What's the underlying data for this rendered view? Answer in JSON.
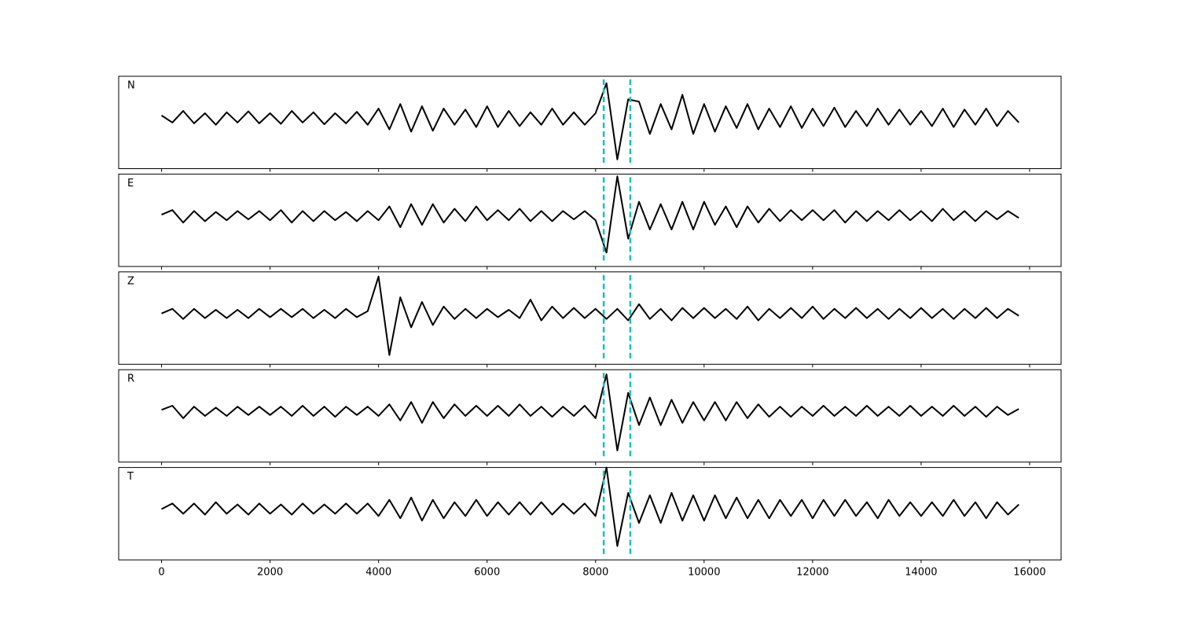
{
  "chart_data": [
    {
      "type": "line",
      "label": "N",
      "color": "#000000",
      "xlim": [
        -790,
        16580
      ],
      "ylim": [
        -1.1,
        0.9
      ],
      "xticks": [
        0,
        2000,
        4000,
        6000,
        8000,
        10000,
        12000,
        14000,
        16000
      ],
      "vlines": [
        8150,
        8640
      ],
      "vline_color": "#17bfbf",
      "x": [
        0,
        200,
        400,
        600,
        800,
        1000,
        1200,
        1400,
        1600,
        1800,
        2000,
        2200,
        2400,
        2600,
        2800,
        3000,
        3200,
        3400,
        3600,
        3800,
        4000,
        4200,
        4400,
        4600,
        4800,
        5000,
        5200,
        5400,
        5600,
        5800,
        6000,
        6200,
        6400,
        6600,
        6800,
        7000,
        7200,
        7400,
        7600,
        7800,
        8000,
        8200,
        8400,
        8600,
        8800,
        9000,
        9200,
        9400,
        9600,
        9800,
        10000,
        10200,
        10400,
        10600,
        10800,
        11000,
        11200,
        11400,
        11600,
        11800,
        12000,
        12200,
        12400,
        12600,
        12800,
        13000,
        13200,
        13400,
        13600,
        13800,
        14000,
        14200,
        14400,
        14600,
        14800,
        15000,
        15200,
        15400,
        15600,
        15800
      ],
      "values": [
        0.05,
        -0.1,
        0.15,
        -0.12,
        0.1,
        -0.15,
        0.12,
        -0.1,
        0.14,
        -0.12,
        0.1,
        -0.13,
        0.15,
        -0.1,
        0.12,
        -0.14,
        0.1,
        -0.12,
        0.13,
        -0.15,
        0.2,
        -0.25,
        0.3,
        -0.3,
        0.25,
        -0.28,
        0.2,
        -0.15,
        0.18,
        -0.2,
        0.25,
        -0.2,
        0.15,
        -0.18,
        0.12,
        -0.15,
        0.2,
        -0.15,
        0.12,
        -0.15,
        0.1,
        0.75,
        -0.9,
        0.4,
        0.35,
        -0.35,
        0.3,
        -0.25,
        0.5,
        -0.35,
        0.3,
        -0.3,
        0.25,
        -0.22,
        0.3,
        -0.25,
        0.2,
        -0.2,
        0.25,
        -0.22,
        0.2,
        -0.18,
        0.22,
        -0.2,
        0.15,
        -0.18,
        0.2,
        -0.15,
        0.18,
        -0.15,
        0.15,
        -0.18,
        0.2,
        -0.2,
        0.18,
        -0.15,
        0.2,
        -0.18,
        0.15,
        -0.1
      ]
    },
    {
      "type": "line",
      "label": "E",
      "color": "#000000",
      "xlim": [
        -790,
        16580
      ],
      "ylim": [
        -1.1,
        0.9
      ],
      "xticks": [
        0,
        2000,
        4000,
        6000,
        8000,
        10000,
        12000,
        14000,
        16000
      ],
      "vlines": [
        8150,
        8640
      ],
      "vline_color": "#17bfbf",
      "x": [
        0,
        200,
        400,
        600,
        800,
        1000,
        1200,
        1400,
        1600,
        1800,
        2000,
        2200,
        2400,
        2600,
        2800,
        3000,
        3200,
        3400,
        3600,
        3800,
        4000,
        4200,
        4400,
        4600,
        4800,
        5000,
        5200,
        5400,
        5600,
        5800,
        6000,
        6200,
        6400,
        6600,
        6800,
        7000,
        7200,
        7400,
        7600,
        7800,
        8000,
        8200,
        8400,
        8600,
        8800,
        9000,
        9200,
        9400,
        9600,
        9800,
        10000,
        10200,
        10400,
        10600,
        10800,
        11000,
        11200,
        11400,
        11600,
        11800,
        12000,
        12200,
        12400,
        12600,
        12800,
        13000,
        13200,
        13400,
        13600,
        13800,
        14000,
        14200,
        14400,
        14600,
        14800,
        15000,
        15200,
        15400,
        15600,
        15800
      ],
      "values": [
        0.02,
        0.12,
        -0.15,
        0.1,
        -0.12,
        0.08,
        -0.1,
        0.1,
        -0.08,
        0.1,
        -0.1,
        0.12,
        -0.15,
        0.1,
        -0.12,
        0.1,
        -0.1,
        0.08,
        -0.12,
        0.1,
        -0.1,
        0.2,
        -0.25,
        0.25,
        -0.2,
        0.25,
        -0.15,
        0.15,
        -0.12,
        0.2,
        -0.1,
        0.12,
        -0.1,
        0.15,
        -0.12,
        0.1,
        -0.12,
        0.1,
        -0.08,
        0.1,
        -0.1,
        -0.8,
        0.85,
        -0.5,
        0.3,
        -0.3,
        0.25,
        -0.3,
        0.3,
        -0.3,
        0.3,
        -0.2,
        0.2,
        -0.25,
        0.2,
        -0.15,
        0.15,
        -0.12,
        0.12,
        -0.1,
        0.12,
        -0.1,
        0.12,
        -0.15,
        0.1,
        -0.12,
        0.1,
        -0.1,
        0.12,
        -0.1,
        0.1,
        -0.12,
        0.15,
        -0.1,
        0.1,
        -0.12,
        0.1,
        -0.08,
        0.1,
        -0.05
      ]
    },
    {
      "type": "line",
      "label": "Z",
      "color": "#000000",
      "xlim": [
        -790,
        16580
      ],
      "ylim": [
        -1.1,
        0.9
      ],
      "xticks": [
        0,
        2000,
        4000,
        6000,
        8000,
        10000,
        12000,
        14000,
        16000
      ],
      "vlines": [
        8150,
        8640
      ],
      "vline_color": "#17bfbf",
      "x": [
        0,
        200,
        400,
        600,
        800,
        1000,
        1200,
        1400,
        1600,
        1800,
        2000,
        2200,
        2400,
        2600,
        2800,
        3000,
        3200,
        3400,
        3600,
        3800,
        4000,
        4200,
        4400,
        4600,
        4800,
        5000,
        5200,
        5400,
        5600,
        5800,
        6000,
        6200,
        6400,
        6600,
        6800,
        7000,
        7200,
        7400,
        7600,
        7800,
        8000,
        8200,
        8400,
        8600,
        8800,
        9000,
        9200,
        9400,
        9600,
        9800,
        10000,
        10200,
        10400,
        10600,
        10800,
        11000,
        11200,
        11400,
        11600,
        11800,
        12000,
        12200,
        12400,
        12600,
        12800,
        13000,
        13200,
        13400,
        13600,
        13800,
        14000,
        14200,
        14400,
        14600,
        14800,
        15000,
        15200,
        15400,
        15600,
        15800
      ],
      "values": [
        0.0,
        0.1,
        -0.12,
        0.1,
        -0.1,
        0.08,
        -0.1,
        0.08,
        -0.1,
        0.1,
        -0.08,
        0.1,
        -0.08,
        0.1,
        -0.1,
        0.08,
        -0.1,
        0.1,
        -0.08,
        0.05,
        0.8,
        -0.9,
        0.35,
        -0.3,
        0.25,
        -0.25,
        0.15,
        -0.12,
        0.1,
        -0.1,
        0.1,
        -0.08,
        0.08,
        -0.1,
        0.3,
        -0.15,
        0.15,
        -0.1,
        0.12,
        -0.1,
        0.1,
        -0.12,
        0.1,
        -0.15,
        0.2,
        -0.12,
        0.1,
        -0.15,
        0.12,
        -0.1,
        0.12,
        -0.1,
        0.1,
        -0.12,
        0.15,
        -0.15,
        0.1,
        -0.1,
        0.12,
        -0.1,
        0.15,
        -0.12,
        0.1,
        -0.1,
        0.12,
        -0.1,
        0.1,
        -0.12,
        0.1,
        -0.1,
        0.12,
        -0.1,
        0.1,
        -0.12,
        0.1,
        -0.1,
        0.12,
        -0.1,
        0.1,
        -0.05
      ]
    },
    {
      "type": "line",
      "label": "R",
      "color": "#000000",
      "xlim": [
        -790,
        16580
      ],
      "ylim": [
        -1.1,
        0.9
      ],
      "xticks": [
        0,
        2000,
        4000,
        6000,
        8000,
        10000,
        12000,
        14000,
        16000
      ],
      "vlines": [
        8150,
        8640
      ],
      "vline_color": "#17bfbf",
      "x": [
        0,
        200,
        400,
        600,
        800,
        1000,
        1200,
        1400,
        1600,
        1800,
        2000,
        2200,
        2400,
        2600,
        2800,
        3000,
        3200,
        3400,
        3600,
        3800,
        4000,
        4200,
        4400,
        4600,
        4800,
        5000,
        5200,
        5400,
        5600,
        5800,
        6000,
        6200,
        6400,
        6600,
        6800,
        7000,
        7200,
        7400,
        7600,
        7800,
        8000,
        8200,
        8400,
        8600,
        8800,
        9000,
        9200,
        9400,
        9600,
        9800,
        10000,
        10200,
        10400,
        10600,
        10800,
        11000,
        11200,
        11400,
        11600,
        11800,
        12000,
        12200,
        12400,
        12600,
        12800,
        13000,
        13200,
        13400,
        13600,
        13800,
        14000,
        14200,
        14400,
        14600,
        14800,
        15000,
        15200,
        15400,
        15600,
        15800
      ],
      "values": [
        0.03,
        0.12,
        -0.15,
        0.1,
        -0.1,
        0.08,
        -0.1,
        0.1,
        -0.08,
        0.1,
        -0.08,
        0.1,
        -0.1,
        0.12,
        -0.1,
        0.1,
        -0.12,
        0.1,
        -0.08,
        0.1,
        -0.1,
        0.15,
        -0.2,
        0.2,
        -0.25,
        0.2,
        -0.15,
        0.15,
        -0.1,
        0.12,
        -0.1,
        0.12,
        -0.1,
        0.15,
        -0.1,
        0.1,
        -0.12,
        0.1,
        -0.1,
        0.12,
        -0.15,
        0.8,
        -0.85,
        0.4,
        -0.3,
        0.3,
        -0.3,
        0.25,
        -0.25,
        0.2,
        -0.2,
        0.2,
        -0.2,
        0.2,
        -0.15,
        0.15,
        -0.12,
        0.1,
        -0.12,
        0.1,
        -0.1,
        0.12,
        -0.1,
        0.1,
        -0.1,
        0.12,
        -0.1,
        0.1,
        -0.1,
        0.12,
        -0.1,
        0.1,
        -0.1,
        0.12,
        -0.1,
        0.1,
        -0.12,
        0.1,
        -0.08,
        0.05
      ]
    },
    {
      "type": "line",
      "label": "T",
      "color": "#000000",
      "xlim": [
        -790,
        16580
      ],
      "ylim": [
        -1.1,
        0.9
      ],
      "xticks": [
        0,
        2000,
        4000,
        6000,
        8000,
        10000,
        12000,
        14000,
        16000
      ],
      "xtick_labels_shown": true,
      "vlines": [
        8150,
        8640
      ],
      "vline_color": "#17bfbf",
      "x": [
        0,
        200,
        400,
        600,
        800,
        1000,
        1200,
        1400,
        1600,
        1800,
        2000,
        2200,
        2400,
        2600,
        2800,
        3000,
        3200,
        3400,
        3600,
        3800,
        4000,
        4200,
        4400,
        4600,
        4800,
        5000,
        5200,
        5400,
        5600,
        5800,
        6000,
        6200,
        6400,
        6600,
        6800,
        7000,
        7200,
        7400,
        7600,
        7800,
        8000,
        8200,
        8400,
        8600,
        8800,
        9000,
        9200,
        9400,
        9600,
        9800,
        10000,
        10200,
        10400,
        10600,
        10800,
        11000,
        11200,
        11400,
        11600,
        11800,
        12000,
        12200,
        12400,
        12600,
        12800,
        13000,
        13200,
        13400,
        13600,
        13800,
        14000,
        14200,
        14400,
        14600,
        14800,
        15000,
        15200,
        15400,
        15600,
        15800
      ],
      "values": [
        0.0,
        0.12,
        -0.1,
        0.12,
        -0.12,
        0.15,
        -0.1,
        0.1,
        -0.12,
        0.12,
        -0.1,
        0.1,
        -0.12,
        0.12,
        -0.1,
        0.1,
        -0.1,
        0.12,
        -0.1,
        0.12,
        -0.15,
        0.2,
        -0.2,
        0.25,
        -0.25,
        0.2,
        -0.2,
        0.15,
        -0.15,
        0.2,
        -0.15,
        0.15,
        -0.12,
        0.15,
        -0.12,
        0.15,
        -0.12,
        0.12,
        -0.1,
        0.12,
        -0.15,
        0.9,
        -0.8,
        0.35,
        -0.3,
        0.3,
        -0.3,
        0.35,
        -0.25,
        0.3,
        -0.25,
        0.3,
        -0.2,
        0.25,
        -0.2,
        0.2,
        -0.2,
        0.2,
        -0.15,
        0.2,
        -0.2,
        0.2,
        -0.15,
        0.2,
        -0.15,
        0.15,
        -0.2,
        0.2,
        -0.15,
        0.15,
        -0.15,
        0.15,
        -0.15,
        0.2,
        -0.15,
        0.15,
        -0.2,
        0.15,
        -0.12,
        0.1
      ]
    }
  ]
}
